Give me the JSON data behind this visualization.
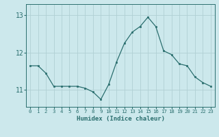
{
  "x": [
    0,
    1,
    2,
    3,
    4,
    5,
    6,
    7,
    8,
    9,
    10,
    11,
    12,
    13,
    14,
    15,
    16,
    17,
    18,
    19,
    20,
    21,
    22,
    23
  ],
  "y": [
    11.65,
    11.65,
    11.45,
    11.1,
    11.1,
    11.1,
    11.1,
    11.05,
    10.95,
    10.75,
    11.15,
    11.75,
    12.25,
    12.55,
    12.7,
    12.95,
    12.7,
    12.05,
    11.95,
    11.7,
    11.65,
    11.35,
    11.2,
    11.1
  ],
  "xlabel": "Humidex (Indice chaleur)",
  "bg_color": "#cce8ec",
  "line_color": "#2a6e6e",
  "grid_color": "#b0d0d4",
  "ylim_min": 10.55,
  "ylim_max": 13.3,
  "yticks": [
    11,
    12,
    13
  ],
  "xticks": [
    0,
    1,
    2,
    3,
    4,
    5,
    6,
    7,
    8,
    9,
    10,
    11,
    12,
    13,
    14,
    15,
    16,
    17,
    18,
    19,
    20,
    21,
    22,
    23
  ]
}
